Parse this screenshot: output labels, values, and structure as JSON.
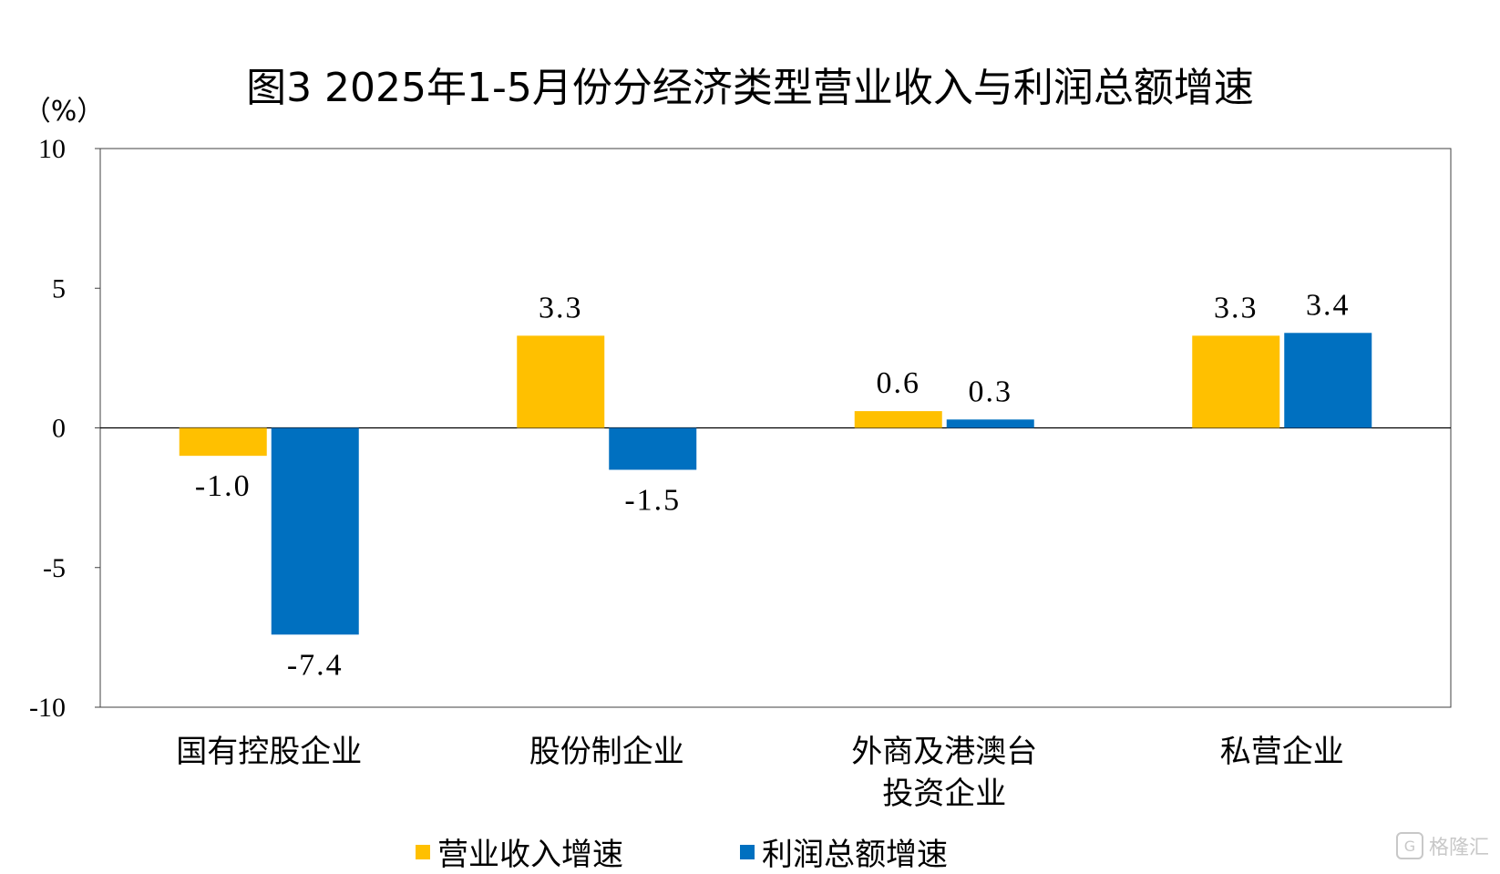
{
  "chart_data": {
    "type": "bar",
    "title": "图3  2025年1-5月份分经济类型营业收入与利润总额增速",
    "ylabel": "（%）",
    "ylim": [
      -10,
      10
    ],
    "yticks": [
      10,
      5,
      0,
      -5,
      -10
    ],
    "categories": [
      [
        "国有控股企业"
      ],
      [
        "股份制企业"
      ],
      [
        "外商及港澳台",
        "投资企业"
      ],
      [
        "私营企业"
      ]
    ],
    "series": [
      {
        "name": "营业收入增速",
        "color": "#FFC000",
        "values": [
          -1.0,
          3.3,
          0.6,
          3.3
        ],
        "labels": [
          "-1.0",
          "3.3",
          "0.6",
          "3.3"
        ]
      },
      {
        "name": "利润总额增速",
        "color": "#0070C0",
        "values": [
          -7.4,
          -1.5,
          0.3,
          3.4
        ],
        "labels": [
          "-7.4",
          "-1.5",
          "0.3",
          "3.4"
        ]
      }
    ],
    "grid": false,
    "legend": "bottom"
  },
  "watermark": {
    "icon": "gelonghui-logo-icon",
    "text": "格隆汇"
  }
}
